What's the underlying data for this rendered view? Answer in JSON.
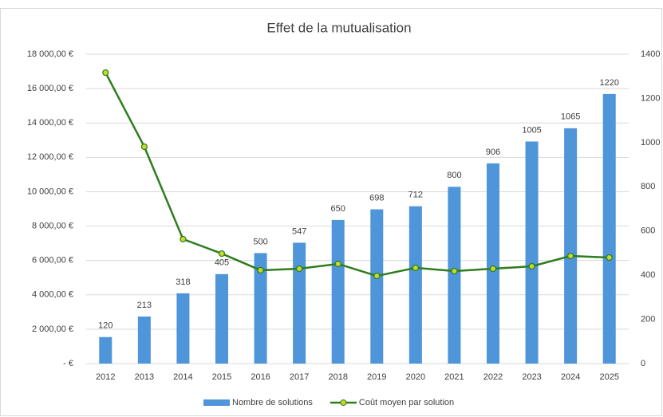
{
  "chart_data": {
    "type": "combo",
    "title": "Effet de la mutualisation",
    "categories": [
      "2012",
      "2013",
      "2014",
      "2015",
      "2016",
      "2017",
      "2018",
      "2019",
      "2020",
      "2021",
      "2022",
      "2023",
      "2024",
      "2025"
    ],
    "series": [
      {
        "name": "Nombre de solutions",
        "type": "bar",
        "axis": "y2",
        "color": "#4e95d9",
        "values": [
          120,
          213,
          318,
          405,
          500,
          547,
          650,
          698,
          712,
          800,
          906,
          1005,
          1065,
          1220
        ]
      },
      {
        "name": "Coût moyen par solution",
        "type": "line",
        "axis": "y",
        "color": "#2e7d1e",
        "marker_color": "#c9d82b",
        "values": [
          16930,
          12620,
          7240,
          6400,
          5430,
          5520,
          5800,
          5100,
          5570,
          5380,
          5520,
          5660,
          6260,
          6170
        ]
      }
    ],
    "ylim": [
      0,
      18000
    ],
    "yticks": [
      {
        "value": 0,
        "label": "-   €"
      },
      {
        "value": 2000,
        "label": "2 000,00 €"
      },
      {
        "value": 4000,
        "label": "4 000,00 €"
      },
      {
        "value": 6000,
        "label": "6 000,00 €"
      },
      {
        "value": 8000,
        "label": "8 000,00 €"
      },
      {
        "value": 10000,
        "label": "10 000,00 €"
      },
      {
        "value": 12000,
        "label": "12 000,00 €"
      },
      {
        "value": 14000,
        "label": "14 000,00 €"
      },
      {
        "value": 16000,
        "label": "16 000,00 €"
      },
      {
        "value": 18000,
        "label": "18 000,00 €"
      }
    ],
    "y2lim": [
      0,
      1400
    ],
    "y2ticks": [
      0,
      200,
      400,
      600,
      800,
      1000,
      1200,
      1400
    ],
    "grid": true,
    "legend": "bottom"
  }
}
